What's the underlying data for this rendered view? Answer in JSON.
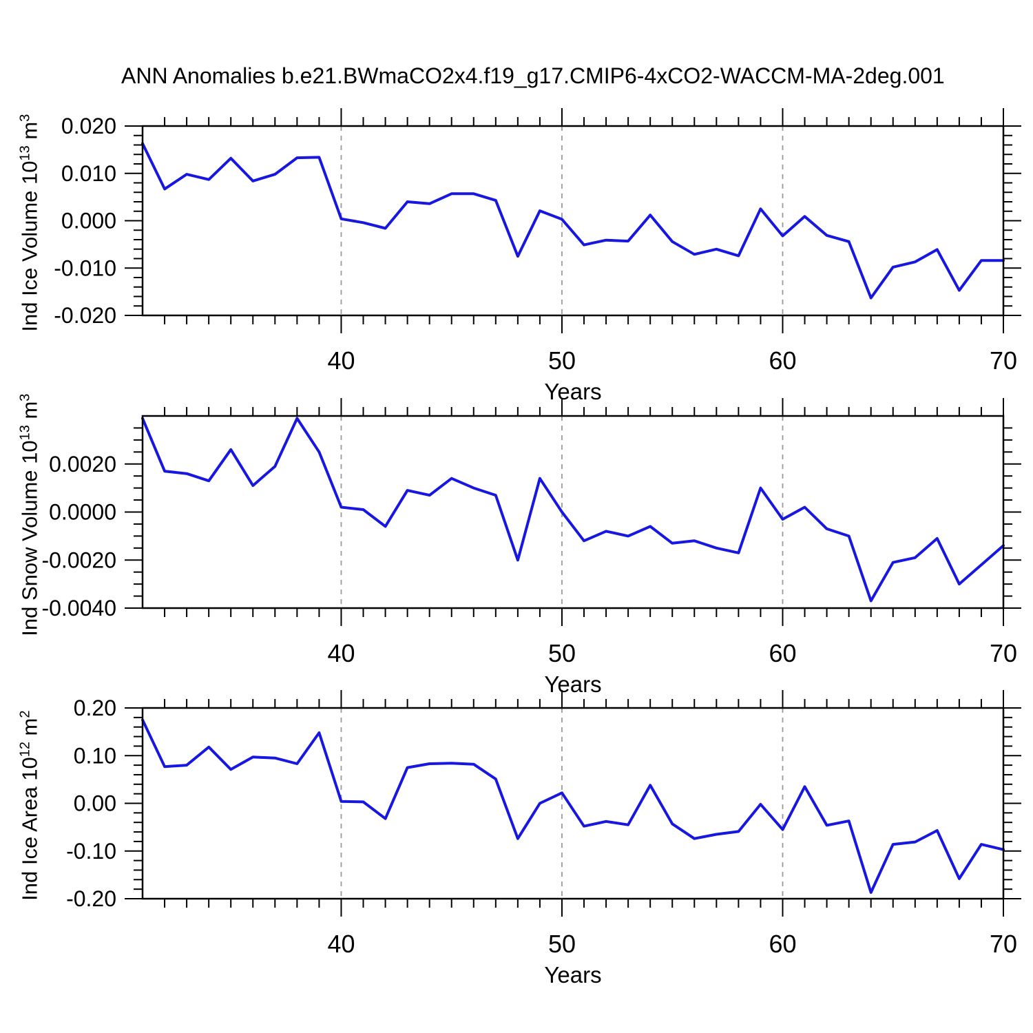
{
  "chart_data": {
    "type": "line",
    "title": "ANN Anomalies b.e21.BWmaCO2x4.f19_g17.CMIP6-4xCO2-WACCM-MA-2deg.001",
    "xlabel": "Years",
    "line_color": "#1717e0",
    "grid_color": "#999999",
    "axis_color": "#000000",
    "x": [
      31,
      32,
      33,
      34,
      35,
      36,
      37,
      38,
      39,
      40,
      41,
      42,
      43,
      44,
      45,
      46,
      47,
      48,
      49,
      50,
      51,
      52,
      53,
      54,
      55,
      56,
      57,
      58,
      59,
      60,
      61,
      62,
      63,
      64,
      65,
      66,
      67,
      68,
      69,
      70
    ],
    "x_axis": {
      "range": [
        31,
        70
      ],
      "major_ticks": [
        40,
        50,
        60,
        70
      ],
      "tick_labels": [
        "40",
        "50",
        "60",
        "70"
      ],
      "minor_step": 1,
      "gridlines": [
        40,
        50,
        60
      ],
      "grid_style": "dashed"
    },
    "panels": [
      {
        "id": "ice-volume",
        "series_name": "Ind Ice Volume anomaly",
        "ylabel_prefix": "Ind Ice Volume 10",
        "ylabel_exp": "13",
        "ylabel_unit": " m",
        "ylabel_unit_exp": "3",
        "ylim": [
          -0.02,
          0.02
        ],
        "ytick_values": [
          0.02,
          0.01,
          0.0,
          -0.01,
          -0.02
        ],
        "ytick_labels": [
          "0.020",
          "0.010",
          "0.000",
          "-0.010",
          "-0.020"
        ],
        "yminor_step": 0.002,
        "values": [
          0.0163,
          0.0067,
          0.0098,
          0.0087,
          0.0132,
          0.0084,
          0.0098,
          0.0133,
          0.0134,
          0.0004,
          -0.0004,
          -0.0016,
          0.004,
          0.0036,
          0.0057,
          0.0057,
          0.0043,
          -0.0075,
          0.0021,
          0.0003,
          -0.0051,
          -0.0041,
          -0.0043,
          0.0012,
          -0.0044,
          -0.0071,
          -0.006,
          -0.0074,
          0.0025,
          -0.0032,
          0.0009,
          -0.0031,
          -0.0044,
          -0.0163,
          -0.0098,
          -0.0087,
          -0.0061,
          -0.0147,
          -0.0084,
          -0.0084
        ]
      },
      {
        "id": "snow-volume",
        "series_name": "Ind Snow Volume anomaly",
        "ylabel_prefix": "Ind Snow Volume 10",
        "ylabel_exp": "13",
        "ylabel_unit": " m",
        "ylabel_unit_exp": "3",
        "ylim": [
          -0.004,
          0.004
        ],
        "ytick_values": [
          0.002,
          0.0,
          -0.002,
          -0.004
        ],
        "ytick_labels": [
          "0.0020",
          "0.0000",
          "-0.0020",
          "-0.0040"
        ],
        "yminor_step": 0.0005,
        "values": [
          0.0039,
          0.0017,
          0.0016,
          0.0013,
          0.0026,
          0.0011,
          0.0019,
          0.0039,
          0.0025,
          0.0002,
          0.0001,
          -0.0006,
          0.0009,
          0.0007,
          0.0014,
          0.001,
          0.0007,
          -0.002,
          0.0014,
          0.0,
          -0.0012,
          -0.0008,
          -0.001,
          -0.0006,
          -0.0013,
          -0.0012,
          -0.0015,
          -0.0017,
          0.001,
          -0.0003,
          0.0002,
          -0.0007,
          -0.001,
          -0.0037,
          -0.0021,
          -0.0019,
          -0.0011,
          -0.003,
          -0.0022,
          -0.0014
        ]
      },
      {
        "id": "ice-area",
        "series_name": "Ind Ice Area anomaly",
        "ylabel_prefix": "Ind Ice Area 10",
        "ylabel_exp": "12",
        "ylabel_unit": " m",
        "ylabel_unit_exp": "2",
        "ylim": [
          -0.2,
          0.2
        ],
        "ytick_values": [
          0.2,
          0.1,
          0.0,
          -0.1,
          -0.2
        ],
        "ytick_labels": [
          "0.20",
          "0.10",
          "0.00",
          "-0.10",
          "-0.20"
        ],
        "yminor_step": 0.02,
        "values": [
          0.175,
          0.077,
          0.08,
          0.118,
          0.071,
          0.097,
          0.095,
          0.083,
          0.148,
          0.004,
          0.003,
          -0.032,
          0.075,
          0.083,
          0.084,
          0.082,
          0.051,
          -0.074,
          0.0,
          0.022,
          -0.048,
          -0.038,
          -0.045,
          0.038,
          -0.043,
          -0.074,
          -0.065,
          -0.059,
          -0.002,
          -0.055,
          0.035,
          -0.046,
          -0.037,
          -0.187,
          -0.086,
          -0.081,
          -0.057,
          -0.158,
          -0.086,
          -0.097
        ]
      }
    ]
  }
}
